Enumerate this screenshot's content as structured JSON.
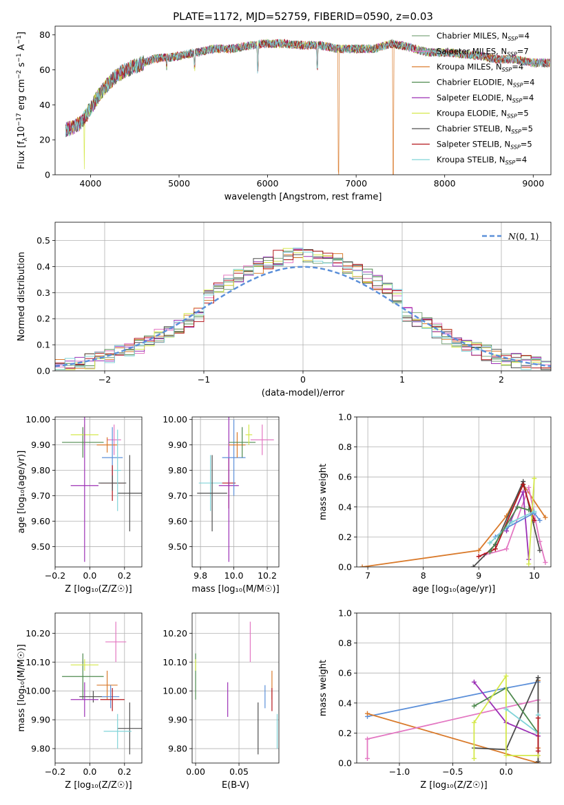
{
  "figure": {
    "title": "PLATE=1172, MJD=52759, FIBERID=0590, z=0.03"
  },
  "legend_labels": [
    {
      "name": "Chabrier MILES, N",
      "sub": "SSP",
      "tail": "=4",
      "color": "#7fa87f"
    },
    {
      "name": "Salpeter MILES, N",
      "sub": "SSP",
      "tail": "=7",
      "color": "#e377c2"
    },
    {
      "name": "Kroupa MILES, N",
      "sub": "SSP",
      "tail": "=4",
      "color": "#d97a2b"
    },
    {
      "name": "Chabrier ELODIE, N",
      "sub": "SSP",
      "tail": "=4",
      "color": "#4e8a4e"
    },
    {
      "name": "Salpeter ELODIE, N",
      "sub": "SSP",
      "tail": "=4",
      "color": "#9b2fb5"
    },
    {
      "name": "Kroupa ELODIE, N",
      "sub": "SSP",
      "tail": "=5",
      "color": "#d4e84a"
    },
    {
      "name": "Chabrier STELIB, N",
      "sub": "SSP",
      "tail": "=5",
      "color": "#4d4d4d"
    },
    {
      "name": "Salpeter STELIB, N",
      "sub": "SSP",
      "tail": "=5",
      "color": "#b3141a"
    },
    {
      "name": "Kroupa STELIB, N",
      "sub": "SSP",
      "tail": "=4",
      "color": "#7fd3d8"
    }
  ],
  "chart_data": [
    {
      "id": "spectrum",
      "type": "line",
      "xlabel": "wavelength [Angstrom, rest frame]",
      "ylabel_main": "Flux [f",
      "ylabel_sub": "λ",
      "ylabel_rest": "10",
      "ylabel_exp1": "−17",
      "ylabel_units": " erg cm",
      "ylabel_exp2": "−2",
      "ylabel_units2": " s",
      "ylabel_exp3": "−1",
      "ylabel_units3": " A",
      "ylabel_exp4": "−1",
      "ylabel_end": "]",
      "xlim": [
        3600,
        9200
      ],
      "ylim": [
        0,
        85
      ],
      "xticks": [
        4000,
        5000,
        6000,
        7000,
        8000,
        9000
      ],
      "yticks": [
        0,
        20,
        40,
        60,
        80
      ],
      "continuum": {
        "x": [
          3720,
          3800,
          3900,
          4000,
          4100,
          4200,
          4300,
          4400,
          4500,
          4600,
          4700,
          4800,
          4900,
          5000,
          5200,
          5400,
          5600,
          5800,
          6000,
          6200,
          6400,
          6600,
          6800,
          7000,
          7200,
          7400,
          7600,
          7800,
          8000,
          8200,
          8400,
          8600,
          8800,
          9000,
          9190
        ],
        "y": [
          26,
          27,
          30,
          38,
          46,
          52,
          57,
          60,
          62,
          64,
          66,
          67,
          67,
          68,
          70,
          72,
          72,
          74,
          75,
          75,
          74,
          74,
          72,
          72,
          72,
          75,
          73,
          70,
          70,
          69,
          68,
          66,
          66,
          64,
          64
        ]
      },
      "dips": [
        {
          "x": 3930,
          "depth": 30,
          "series": 5
        },
        {
          "x": 6800,
          "depth": 72,
          "series": 2
        },
        {
          "x": 7420,
          "depth": 75,
          "series": 2
        },
        {
          "x": 4860,
          "depth": 6,
          "series": -1
        },
        {
          "x": 5175,
          "depth": 8,
          "series": -1
        },
        {
          "x": 5890,
          "depth": 14,
          "series": -1
        },
        {
          "x": 6560,
          "depth": 12,
          "series": -1
        }
      ]
    },
    {
      "id": "residuals",
      "type": "bar",
      "xlabel": "(data-model)/error",
      "ylabel": "Normed distribution",
      "xlim": [
        -2.5,
        2.5
      ],
      "ylim": [
        0,
        0.57
      ],
      "xticks": [
        -2,
        -1,
        0,
        1,
        2
      ],
      "yticks": [
        0.0,
        0.1,
        0.2,
        0.3,
        0.4,
        0.5
      ],
      "reference": {
        "name_prefix": "N",
        "name_suffix": "(0, 1)",
        "color": "#5b8fd9"
      },
      "bin_width": 0.1,
      "grid": true
    },
    {
      "id": "age_vs_Z",
      "type": "scatter",
      "xlabel": "Z [log₁₀(Z/Z☉)]",
      "ylabel": "age [log₁₀(age/yr)]",
      "xlim": [
        -0.2,
        0.3
      ],
      "ylim": [
        9.42,
        10.01
      ],
      "xticks": [
        -0.2,
        0.0,
        0.2
      ],
      "yticks": [
        9.5,
        9.6,
        9.7,
        9.8,
        9.9,
        10.0
      ],
      "points": [
        {
          "x": -0.04,
          "y": 9.91,
          "xerr": 0.12,
          "yerr": 0.06,
          "color": "#4e8a4e"
        },
        {
          "x": -0.03,
          "y": 9.94,
          "xerr": 0.08,
          "yerr": 0.04,
          "color": "#d4e84a"
        },
        {
          "x": -0.03,
          "y": 9.74,
          "xerr": 0.08,
          "yerr": 0.3,
          "color": "#9b2fb5"
        },
        {
          "x": 0.14,
          "y": 9.92,
          "xerr": 0.04,
          "yerr": 0.06,
          "color": "#e377c2"
        },
        {
          "x": 0.1,
          "y": 9.9,
          "xerr": 0.06,
          "yerr": 0.03,
          "color": "#d97a2b"
        },
        {
          "x": 0.13,
          "y": 9.85,
          "xerr": 0.06,
          "yerr": 0.12,
          "color": "#5b8fd9"
        },
        {
          "x": 0.13,
          "y": 9.75,
          "xerr": 0.07,
          "yerr": 0.07,
          "color": "#b3141a"
        },
        {
          "x": 0.13,
          "y": 9.75,
          "xerr": 0.08,
          "yerr": 0.03,
          "color": "#4d4d4d"
        },
        {
          "x": 0.23,
          "y": 9.71,
          "xerr": 0.07,
          "yerr": 0.15,
          "color": "#4d4d4d"
        },
        {
          "x": 0.16,
          "y": 9.8,
          "xerr": 0.02,
          "yerr": 0.16,
          "color": "#7fd3d8"
        }
      ]
    },
    {
      "id": "age_vs_mass",
      "type": "scatter",
      "xlabel": "mass [log₁₀(M/M☉)]",
      "ylabel": "",
      "xlim": [
        9.75,
        10.27
      ],
      "ylim": [
        9.42,
        10.01
      ],
      "xticks": [
        9.8,
        10.0,
        10.2
      ],
      "yticks": [
        9.5,
        9.6,
        9.7,
        9.8,
        9.9,
        10.0
      ],
      "points": [
        {
          "x": 9.86,
          "y": 9.75,
          "xerr": 0.07,
          "yerr": 0.11,
          "color": "#7fd3d8"
        },
        {
          "x": 9.87,
          "y": 9.71,
          "xerr": 0.09,
          "yerr": 0.15,
          "color": "#4d4d4d"
        },
        {
          "x": 9.97,
          "y": 9.75,
          "xerr": 0.04,
          "yerr": 0.1,
          "color": "#b3141a"
        },
        {
          "x": 9.97,
          "y": 9.74,
          "xerr": 0.06,
          "yerr": 0.3,
          "color": "#9b2fb5"
        },
        {
          "x": 10.0,
          "y": 9.85,
          "xerr": 0.07,
          "yerr": 0.15,
          "color": "#5b8fd9"
        },
        {
          "x": 10.02,
          "y": 9.9,
          "xerr": 0.05,
          "yerr": 0.05,
          "color": "#d97a2b"
        },
        {
          "x": 10.05,
          "y": 9.91,
          "xerr": 0.08,
          "yerr": 0.06,
          "color": "#4e8a4e"
        },
        {
          "x": 10.09,
          "y": 9.94,
          "xerr": 0.02,
          "yerr": 0.04,
          "color": "#d4e84a"
        },
        {
          "x": 10.17,
          "y": 9.92,
          "xerr": 0.07,
          "yerr": 0.06,
          "color": "#e377c2"
        }
      ]
    },
    {
      "id": "massweight_vs_age",
      "type": "line",
      "xlabel": "age  [log₁₀(age/yr)]",
      "ylabel": "mass weight",
      "xlim": [
        6.8,
        10.3
      ],
      "ylim": [
        0,
        1.0
      ],
      "xticks": [
        7,
        8,
        9,
        10
      ],
      "yticks": [
        0.0,
        0.2,
        0.4,
        0.6,
        0.8,
        1.0
      ],
      "series": [
        {
          "color": "#d97a2b",
          "x": [
            6.9,
            9.0,
            9.5,
            9.8,
            10.2
          ],
          "y": [
            0.0,
            0.11,
            0.34,
            0.55,
            0.33
          ]
        },
        {
          "color": "#e377c2",
          "x": [
            9.1,
            9.5,
            9.9,
            10.1,
            10.2
          ],
          "y": [
            0.08,
            0.12,
            0.53,
            0.17,
            0.03
          ]
        },
        {
          "color": "#4d4d4d",
          "x": [
            8.9,
            9.3,
            9.8,
            10.1
          ],
          "y": [
            0.0,
            0.15,
            0.57,
            0.11
          ]
        },
        {
          "color": "#b3141a",
          "x": [
            9.0,
            9.3,
            9.8,
            10.0
          ],
          "y": [
            0.07,
            0.12,
            0.55,
            0.31
          ]
        },
        {
          "color": "#9b2fb5",
          "x": [
            9.5,
            9.8,
            9.9
          ],
          "y": [
            0.24,
            0.5,
            0.05
          ]
        },
        {
          "color": "#d4e84a",
          "x": [
            9.9,
            10.0
          ],
          "y": [
            0.02,
            0.59
          ]
        },
        {
          "color": "#5b8fd9",
          "x": [
            9.3,
            9.5,
            10.0,
            10.1
          ],
          "y": [
            0.2,
            0.26,
            0.36,
            0.31
          ]
        },
        {
          "color": "#7fd3d8",
          "x": [
            9.2,
            9.6,
            10.0
          ],
          "y": [
            0.16,
            0.3,
            0.37
          ]
        },
        {
          "color": "#4e8a4e",
          "x": [
            9.2,
            9.7,
            9.9
          ],
          "y": [
            0.1,
            0.4,
            0.38
          ]
        }
      ]
    },
    {
      "id": "mass_vs_Z",
      "type": "scatter",
      "xlabel": "Z [log₁₀(Z/Z☉)]",
      "ylabel": "mass [log₁₀(M/M☉)]",
      "xlim": [
        -0.2,
        0.3
      ],
      "ylim": [
        9.75,
        10.27
      ],
      "xticks": [
        -0.2,
        0.0,
        0.2
      ],
      "yticks": [
        9.8,
        9.9,
        10.0,
        10.1,
        10.2
      ],
      "points": [
        {
          "x": 0.15,
          "y": 10.17,
          "xerr": 0.06,
          "yerr": 0.07,
          "color": "#e377c2"
        },
        {
          "x": -0.04,
          "y": 10.05,
          "xerr": 0.12,
          "yerr": 0.08,
          "color": "#4e8a4e"
        },
        {
          "x": -0.03,
          "y": 10.09,
          "xerr": 0.08,
          "yerr": 0.02,
          "color": "#d4e84a"
        },
        {
          "x": 0.1,
          "y": 10.02,
          "xerr": 0.06,
          "yerr": 0.05,
          "color": "#d97a2b"
        },
        {
          "x": 0.02,
          "y": 9.98,
          "xerr": 0.08,
          "yerr": 0.02,
          "color": "#4d4d4d"
        },
        {
          "x": -0.03,
          "y": 9.97,
          "xerr": 0.08,
          "yerr": 0.06,
          "color": "#9b2fb5"
        },
        {
          "x": 0.12,
          "y": 9.98,
          "xerr": 0.05,
          "yerr": 0.04,
          "color": "#5b8fd9"
        },
        {
          "x": 0.13,
          "y": 9.97,
          "xerr": 0.07,
          "yerr": 0.04,
          "color": "#b3141a"
        },
        {
          "x": 0.23,
          "y": 9.87,
          "xerr": 0.07,
          "yerr": 0.09,
          "color": "#4d4d4d"
        },
        {
          "x": 0.16,
          "y": 9.86,
          "xerr": 0.08,
          "yerr": 0.06,
          "color": "#7fd3d8"
        }
      ]
    },
    {
      "id": "mass_vs_ebv",
      "type": "scatter",
      "xlabel": "E(B-V)",
      "ylabel": "",
      "xlim": [
        -0.004,
        0.096
      ],
      "ylim": [
        9.75,
        10.27
      ],
      "xticks": [
        0.0,
        0.05
      ],
      "yticks": [
        9.8,
        9.9,
        10.0,
        10.1,
        10.2
      ],
      "points": [
        {
          "x": 0.0,
          "y": 10.05,
          "xerr": 0,
          "yerr": 0.08,
          "color": "#4e8a4e"
        },
        {
          "x": 0.0,
          "y": 10.09,
          "xerr": 0,
          "yerr": 0.02,
          "color": "#d4e84a"
        },
        {
          "x": 0.037,
          "y": 9.97,
          "xerr": 0,
          "yerr": 0.06,
          "color": "#9b2fb5"
        },
        {
          "x": 0.063,
          "y": 10.17,
          "xerr": 0,
          "yerr": 0.07,
          "color": "#e377c2"
        },
        {
          "x": 0.072,
          "y": 9.87,
          "xerr": 0,
          "yerr": 0.09,
          "color": "#4d4d4d"
        },
        {
          "x": 0.08,
          "y": 9.98,
          "xerr": 0,
          "yerr": 0.04,
          "color": "#5b8fd9"
        },
        {
          "x": 0.088,
          "y": 10.02,
          "xerr": 0,
          "yerr": 0.05,
          "color": "#d97a2b"
        },
        {
          "x": 0.088,
          "y": 9.97,
          "xerr": 0,
          "yerr": 0.04,
          "color": "#b3141a"
        },
        {
          "x": 0.094,
          "y": 9.86,
          "xerr": 0,
          "yerr": 0.06,
          "color": "#7fd3d8"
        }
      ]
    },
    {
      "id": "massweight_vs_Z",
      "type": "line",
      "xlabel": "Z [log₁₀(Z/Z☉)]",
      "ylabel": "mass weight",
      "xlim": [
        -1.4,
        0.42
      ],
      "ylim": [
        0,
        1.0
      ],
      "xticks": [
        -1.0,
        -0.5,
        0.0
      ],
      "yticks": [
        0.0,
        0.2,
        0.4,
        0.6,
        0.8,
        1.0
      ],
      "series": [
        {
          "color": "#5b8fd9",
          "x": [
            -1.3,
            0.0,
            0.3
          ],
          "y": [
            0.31,
            0.5,
            0.54
          ]
        },
        {
          "color": "#d97a2b",
          "x": [
            -1.3,
            0.3,
            0.3,
            0.3
          ],
          "y": [
            0.33,
            0.0,
            0.1,
            0.55
          ]
        },
        {
          "color": "#e377c2",
          "x": [
            -1.3,
            -1.3,
            0.3,
            0.3
          ],
          "y": [
            0.03,
            0.16,
            0.42,
            0.05
          ]
        },
        {
          "color": "#4d4d4d",
          "x": [
            -0.3,
            0.0,
            0.3,
            0.3
          ],
          "y": [
            0.1,
            0.09,
            0.57,
            0.01
          ]
        },
        {
          "color": "#9b2fb5",
          "x": [
            -0.3,
            0.0,
            0.3
          ],
          "y": [
            0.54,
            0.27,
            0.18
          ]
        },
        {
          "color": "#4e8a4e",
          "x": [
            -0.3,
            0.0,
            0.3
          ],
          "y": [
            0.38,
            0.5,
            0.2
          ]
        },
        {
          "color": "#d4e84a",
          "x": [
            -0.3,
            -0.3,
            0.0,
            0.0,
            0.3
          ],
          "y": [
            0.03,
            0.27,
            0.58,
            0.05,
            0.05
          ]
        },
        {
          "color": "#7fd3d8",
          "x": [
            0.0,
            0.3,
            0.3
          ],
          "y": [
            0.36,
            0.2,
            0.32
          ]
        },
        {
          "color": "#b3141a",
          "x": [
            0.3,
            0.3
          ],
          "y": [
            0.08,
            0.3
          ]
        }
      ]
    }
  ]
}
